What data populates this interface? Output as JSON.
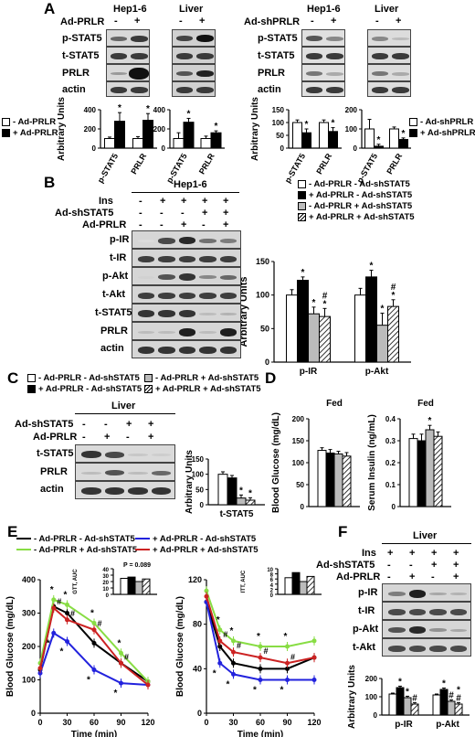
{
  "panel_letters": [
    "A",
    "B",
    "C",
    "D",
    "E",
    "F"
  ],
  "panelA": {
    "left": {
      "treatment": "Ad-PRLR",
      "col_headers": [
        "Hep1-6",
        "Liver"
      ],
      "signs": [
        "-",
        "+"
      ],
      "rows": [
        "p-STAT5",
        "t-STAT5",
        "PRLR",
        "actin"
      ],
      "legend": [
        "- Ad-PRLR",
        "+ Ad-PRLR"
      ]
    },
    "right": {
      "treatment": "Ad-shPRLR",
      "col_headers": [
        "Hep1-6",
        "Liver"
      ],
      "signs": [
        "-",
        "+"
      ],
      "rows": [
        "p-STAT5",
        "t-STAT5",
        "PRLR",
        "actin"
      ],
      "legend": [
        "- Ad-shPRLR",
        "+ Ad-shPRLR"
      ]
    },
    "ylabel": "Arbitrary Units"
  },
  "panelB": {
    "header": "Hep1-6",
    "conditions": [
      "Ins",
      "Ad-shSTAT5",
      "Ad-PRLR"
    ],
    "signs": [
      [
        "-",
        "+",
        "+",
        "+",
        "+"
      ],
      [
        "-",
        "-",
        "-",
        "+",
        "+"
      ],
      [
        "-",
        "-",
        "+",
        "-",
        "+"
      ]
    ],
    "rows": [
      "p-IR",
      "t-IR",
      "p-Akt",
      "t-Akt",
      "t-STAT5",
      "PRLR",
      "actin"
    ],
    "legend": [
      "- Ad-PRLR - Ad-shSTAT5",
      "+ Ad-PRLR - Ad-shSTAT5",
      "- Ad-PRLR + Ad-shSTAT5",
      "+ Ad-PRLR + Ad-shSTAT5"
    ]
  },
  "panelC": {
    "legend": [
      "- Ad-PRLR - Ad-shSTAT5",
      "+ Ad-PRLR - Ad-shSTAT5",
      "- Ad-PRLR + Ad-shSTAT5",
      "+ Ad-PRLR + Ad-shSTAT5"
    ],
    "header": "Liver",
    "conditions": [
      "Ad-shSTAT5",
      "Ad-PRLR"
    ],
    "signs": [
      [
        "-",
        "-",
        "+",
        "+"
      ],
      [
        "-",
        "+",
        "-",
        "+"
      ]
    ],
    "rows": [
      "t-STAT5",
      "PRLR",
      "actin"
    ]
  },
  "panelD": {
    "titles": [
      "Fed",
      "Fed"
    ]
  },
  "panelE": {
    "legend": [
      "- Ad-PRLR - Ad-shSTAT5",
      "+ Ad-PRLR - Ad-shSTAT5",
      "- Ad-PRLR + Ad-shSTAT5",
      "+ Ad-PRLR + Ad-shSTAT5"
    ],
    "legend_colors": [
      "#000000",
      "#2222dd",
      "#88dd44",
      "#cc2222"
    ],
    "inset_p": "P = 0.089"
  },
  "panelF": {
    "header": "Liver",
    "conditions": [
      "Ins",
      "Ad-shSTAT5",
      "Ad-PRLR"
    ],
    "signs": [
      [
        "+",
        "+",
        "+",
        "+"
      ],
      [
        "-",
        "-",
        "+",
        "+"
      ],
      [
        "-",
        "+",
        "-",
        "+"
      ]
    ],
    "rows": [
      "p-IR",
      "t-IR",
      "p-Akt",
      "t-Akt"
    ]
  },
  "chart_data": [
    {
      "id": "A-left-hep",
      "type": "bar",
      "categories": [
        "p-STAT5",
        "PRLR"
      ],
      "series": [
        {
          "name": "- Ad-PRLR",
          "values": [
            100,
            100
          ]
        },
        {
          "name": "+ Ad-PRLR",
          "values": [
            280,
            290
          ]
        }
      ],
      "errors": [
        [
          15,
          20
        ],
        [
          90,
          70
        ]
      ],
      "significance": [
        [
          "",
          ""
        ],
        [
          "*",
          "*"
        ]
      ],
      "ylim": [
        0,
        400
      ],
      "yticks": [
        0,
        200,
        400
      ],
      "ylabel": "Arbitrary Units"
    },
    {
      "id": "A-left-liver",
      "type": "bar",
      "categories": [
        "p-STAT5",
        "PRLR"
      ],
      "series": [
        {
          "name": "- Ad-PRLR",
          "values": [
            100,
            100
          ]
        },
        {
          "name": "+ Ad-PRLR",
          "values": [
            270,
            160
          ]
        }
      ],
      "errors": [
        [
          60,
          25
        ],
        [
          40,
          20
        ]
      ],
      "significance": [
        [
          "",
          ""
        ],
        [
          "*",
          "*"
        ]
      ],
      "ylim": [
        0,
        400
      ],
      "yticks": [
        0,
        200,
        400
      ]
    },
    {
      "id": "A-right-hep",
      "type": "bar",
      "categories": [
        "p-STAT5",
        "PRLR"
      ],
      "series": [
        {
          "name": "- Ad-shPRLR",
          "values": [
            100,
            100
          ]
        },
        {
          "name": "+ Ad-shPRLR",
          "values": [
            60,
            65
          ]
        }
      ],
      "errors": [
        [
          10,
          10
        ],
        [
          15,
          15
        ]
      ],
      "significance": [
        [
          "",
          ""
        ],
        [
          "*",
          "*"
        ]
      ],
      "ylim": [
        0,
        150
      ],
      "yticks": [
        0,
        50,
        100,
        150
      ],
      "ylabel": "Arbitrary Units"
    },
    {
      "id": "A-right-liver",
      "type": "bar",
      "categories": [
        "p-STAT5",
        "PRLR"
      ],
      "series": [
        {
          "name": "- Ad-shPRLR",
          "values": [
            100,
            100
          ]
        },
        {
          "name": "+ Ad-shPRLR",
          "values": [
            10,
            45
          ]
        }
      ],
      "errors": [
        [
          50,
          10
        ],
        [
          10,
          8
        ]
      ],
      "significance": [
        [
          "",
          ""
        ],
        [
          "*",
          "*"
        ]
      ],
      "ylim": [
        0,
        200
      ],
      "yticks": [
        0,
        100,
        200
      ]
    },
    {
      "id": "B",
      "type": "bar",
      "categories": [
        "p-IR",
        "p-Akt"
      ],
      "series": [
        {
          "name": "- Ad-PRLR - Ad-shSTAT5",
          "values": [
            100,
            100
          ]
        },
        {
          "name": "+ Ad-PRLR - Ad-shSTAT5",
          "values": [
            122,
            127
          ]
        },
        {
          "name": "- Ad-PRLR + Ad-shSTAT5",
          "values": [
            72,
            55
          ]
        },
        {
          "name": "+ Ad-PRLR + Ad-shSTAT5",
          "values": [
            68,
            83
          ]
        }
      ],
      "errors": [
        [
          8,
          10
        ],
        [
          5,
          10
        ],
        [
          10,
          18
        ],
        [
          12,
          10
        ]
      ],
      "significance": [
        [
          "",
          ""
        ],
        [
          "*",
          "*"
        ],
        [
          "*",
          "*"
        ],
        [
          "#*",
          "#*"
        ]
      ],
      "ylim": [
        0,
        150
      ],
      "yticks": [
        0,
        50,
        100,
        150
      ],
      "ylabel": "Arbitrary Units"
    },
    {
      "id": "C",
      "type": "bar",
      "categories": [
        "t-STAT5"
      ],
      "series": [
        {
          "name": "- Ad-PRLR - Ad-shSTAT5",
          "values": [
            100
          ]
        },
        {
          "name": "+ Ad-PRLR - Ad-shSTAT5",
          "values": [
            88
          ]
        },
        {
          "name": "- Ad-PRLR + Ad-shSTAT5",
          "values": [
            22
          ]
        },
        {
          "name": "+ Ad-PRLR + Ad-shSTAT5",
          "values": [
            15
          ]
        }
      ],
      "errors": [
        [
          8
        ],
        [
          8
        ],
        [
          10
        ],
        [
          8
        ]
      ],
      "significance": [
        [
          ""
        ],
        [
          ""
        ],
        [
          "*"
        ],
        [
          "*"
        ]
      ],
      "ylim": [
        0,
        150
      ],
      "yticks": [
        0,
        50,
        100,
        150
      ],
      "ylabel": "Arbitrary Units"
    },
    {
      "id": "D-glucose",
      "type": "bar",
      "title": "Fed",
      "series": [
        {
          "name": "- Ad-PRLR - Ad-shSTAT5",
          "values": [
            128
          ]
        },
        {
          "name": "+ Ad-PRLR - Ad-shSTAT5",
          "values": [
            122
          ]
        },
        {
          "name": "- Ad-PRLR + Ad-shSTAT5",
          "values": [
            120
          ]
        },
        {
          "name": "+ Ad-PRLR + Ad-shSTAT5",
          "values": [
            115
          ]
        }
      ],
      "errors": [
        [
          6
        ],
        [
          8
        ],
        [
          6
        ],
        [
          8
        ]
      ],
      "ylim": [
        0,
        200
      ],
      "yticks": [
        0,
        50,
        100,
        150,
        200
      ],
      "ylabel": "Blood Glucose (mg/dL)"
    },
    {
      "id": "D-insulin",
      "type": "bar",
      "title": "Fed",
      "series": [
        {
          "name": "- Ad-PRLR - Ad-shSTAT5",
          "values": [
            0.31
          ]
        },
        {
          "name": "+ Ad-PRLR - Ad-shSTAT5",
          "values": [
            0.3
          ]
        },
        {
          "name": "- Ad-PRLR + Ad-shSTAT5",
          "values": [
            0.35
          ]
        },
        {
          "name": "+ Ad-PRLR + Ad-shSTAT5",
          "values": [
            0.32
          ]
        }
      ],
      "errors": [
        [
          0.02
        ],
        [
          0.03
        ],
        [
          0.02
        ],
        [
          0.02
        ]
      ],
      "significance": [
        [
          ""
        ],
        [
          ""
        ],
        [
          "*"
        ],
        [
          ""
        ]
      ],
      "ylim": [
        0,
        0.4
      ],
      "yticks": [
        0,
        0.1,
        0.2,
        0.3,
        0.4
      ],
      "ylabel": "Serum Insulin (ng/mL)"
    },
    {
      "id": "E-GTT",
      "type": "line",
      "x": [
        0,
        15,
        30,
        60,
        90,
        120
      ],
      "series": [
        {
          "name": "- Ad-PRLR - Ad-shSTAT5",
          "values": [
            130,
            320,
            300,
            210,
            150,
            95
          ]
        },
        {
          "name": "+ Ad-PRLR - Ad-shSTAT5",
          "values": [
            120,
            240,
            215,
            130,
            90,
            85
          ]
        },
        {
          "name": "- Ad-PRLR + Ad-shSTAT5",
          "values": [
            150,
            340,
            325,
            270,
            180,
            95
          ]
        },
        {
          "name": "+ Ad-PRLR + Ad-shSTAT5",
          "values": [
            135,
            315,
            280,
            250,
            150,
            85
          ]
        }
      ],
      "xlim": [
        0,
        120
      ],
      "ylim": [
        0,
        400
      ],
      "xlabel": "Time (min)",
      "ylabel": "Blood Glucose (mg/dL)"
    },
    {
      "id": "E-GTT-inset",
      "type": "bar",
      "ylabel": "GTT, AUC (mg/dL*min, x 10³)",
      "series": [
        {
          "values": [
            25
          ]
        },
        {
          "values": [
            27
          ]
        },
        {
          "values": [
            20
          ]
        },
        {
          "values": [
            24
          ]
        }
      ],
      "ylim": [
        0,
        40
      ],
      "yticks": [
        0,
        10,
        20,
        30,
        40
      ],
      "annotation": "P = 0.089"
    },
    {
      "id": "E-ITT",
      "type": "line",
      "x": [
        0,
        15,
        30,
        60,
        90,
        120
      ],
      "series": [
        {
          "name": "- Ad-PRLR - Ad-shSTAT5",
          "values": [
            100,
            60,
            45,
            40,
            40,
            50
          ]
        },
        {
          "name": "+ Ad-PRLR - Ad-shSTAT5",
          "values": [
            100,
            45,
            35,
            30,
            30,
            30
          ]
        },
        {
          "name": "- Ad-PRLR + Ad-shSTAT5",
          "values": [
            110,
            75,
            65,
            60,
            60,
            65
          ]
        },
        {
          "name": "+ Ad-PRLR + Ad-shSTAT5",
          "values": [
            105,
            65,
            55,
            50,
            45,
            50
          ]
        }
      ],
      "xlim": [
        0,
        120
      ],
      "ylim": [
        0,
        120
      ],
      "xlabel": "Time (min)",
      "ylabel": "Blood Glucose (mg/dL)"
    },
    {
      "id": "E-ITT-inset",
      "type": "bar",
      "ylabel": "ITT, AUC (mg/dL*min, x 10³)",
      "series": [
        {
          "values": [
            6.5
          ]
        },
        {
          "values": [
            8.5
          ]
        },
        {
          "values": [
            5
          ]
        },
        {
          "values": [
            7
          ]
        }
      ],
      "ylim": [
        0,
        10
      ],
      "yticks": [
        0,
        2,
        4,
        6,
        8,
        10
      ]
    },
    {
      "id": "F",
      "type": "bar",
      "categories": [
        "p-IR",
        "p-Akt"
      ],
      "series": [
        {
          "name": "- Ad-PRLR - Ad-shSTAT5",
          "values": [
            115,
            110
          ]
        },
        {
          "name": "+ Ad-PRLR - Ad-shSTAT5",
          "values": [
            150,
            140
          ]
        },
        {
          "name": "- Ad-PRLR + Ad-shSTAT5",
          "values": [
            95,
            75
          ]
        },
        {
          "name": "+ Ad-PRLR + Ad-shSTAT5",
          "values": [
            60,
            60
          ]
        }
      ],
      "errors": [
        [
          5,
          5
        ],
        [
          8,
          8
        ],
        [
          8,
          8
        ],
        [
          8,
          8
        ]
      ],
      "significance": [
        [
          "",
          ""
        ],
        [
          "*",
          "*"
        ],
        [
          "*",
          "#"
        ],
        [
          "#",
          "*#"
        ]
      ],
      "ylim": [
        0,
        200
      ],
      "yticks": [
        0,
        100,
        200
      ],
      "ylabel": "Arbitrary Units"
    }
  ]
}
